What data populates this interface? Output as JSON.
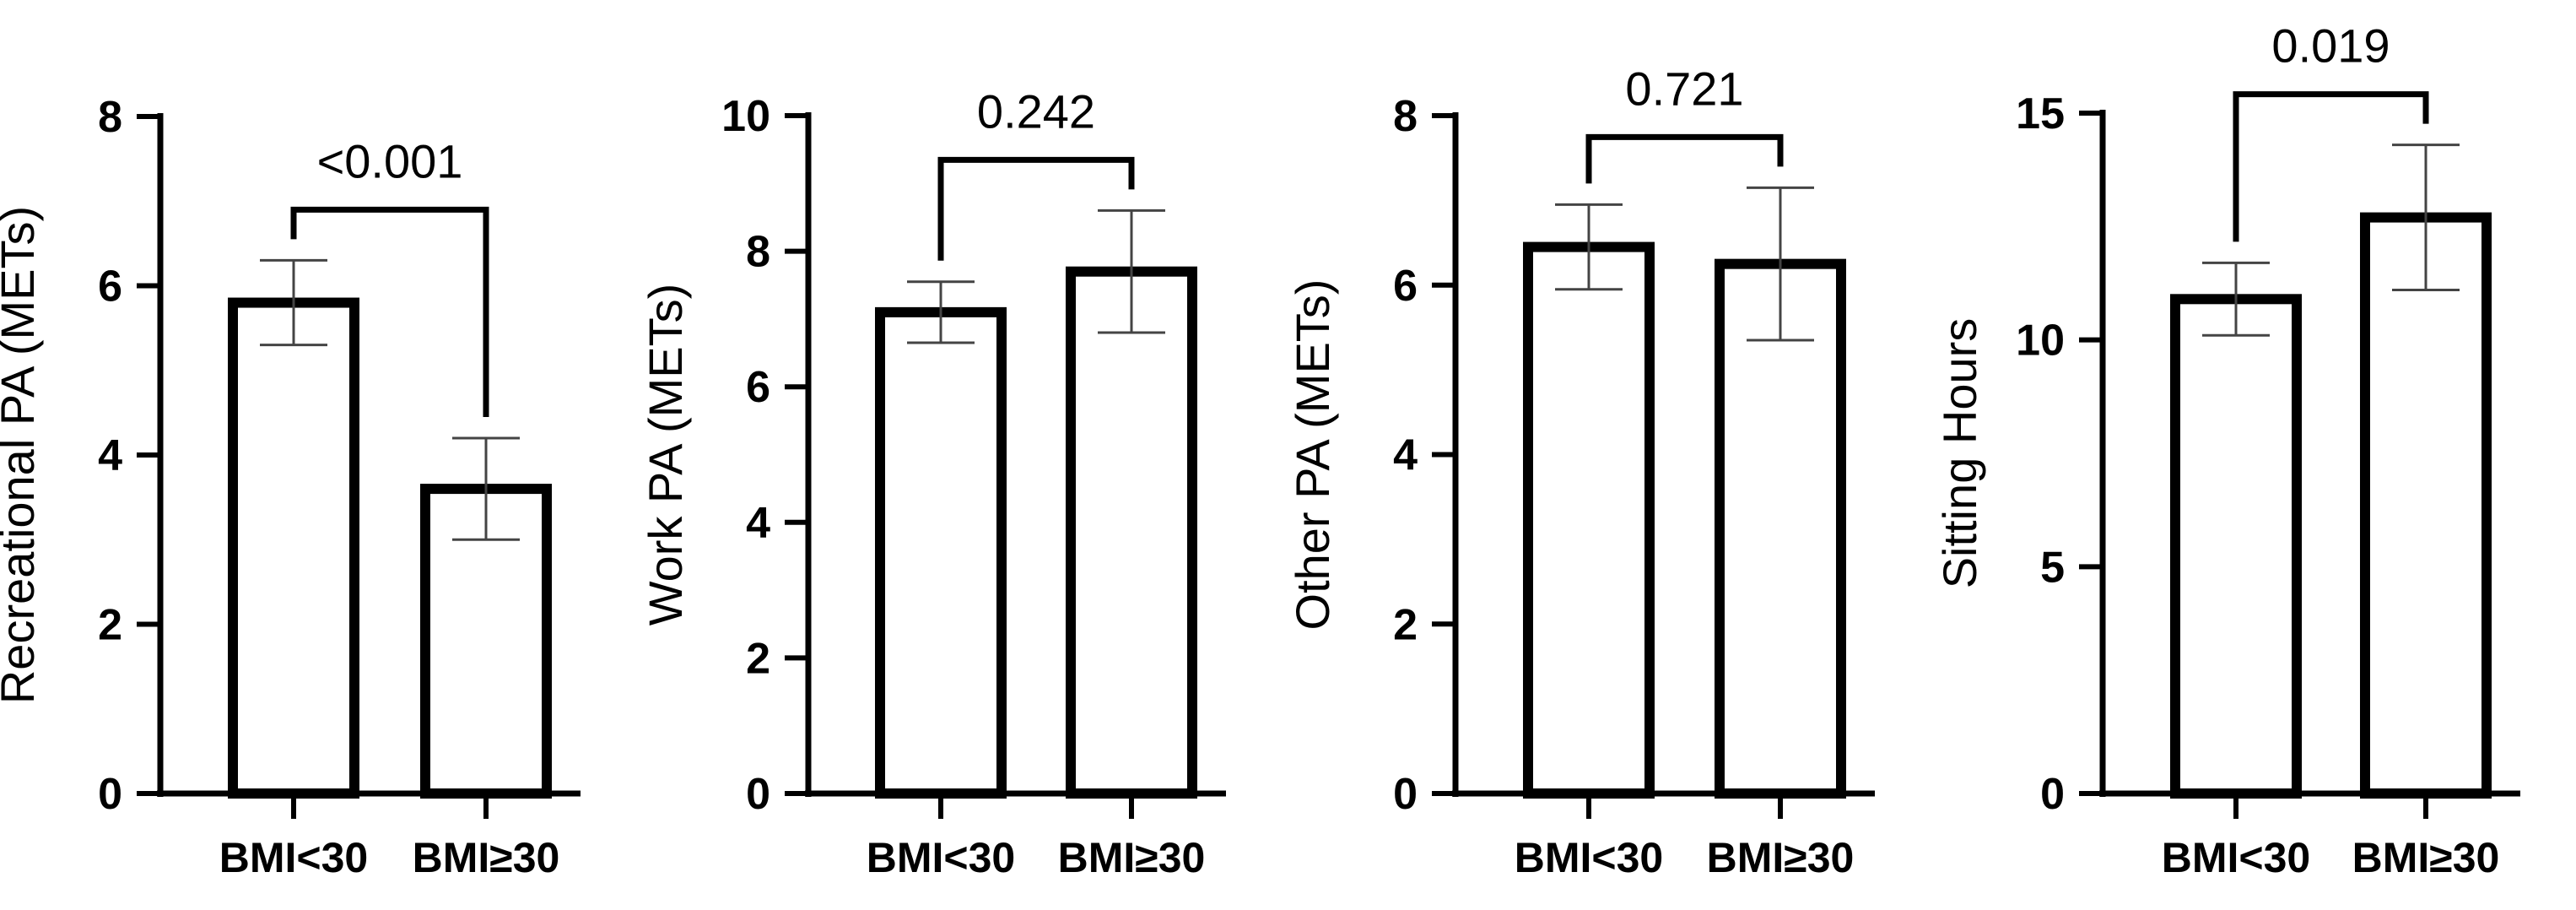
{
  "chart_data": [
    {
      "type": "bar",
      "categories": [
        "BMI<30",
        "BMI≥30"
      ],
      "values": [
        5.8,
        3.6
      ],
      "error": [
        0.5,
        0.6
      ],
      "ylabel": "Recreational PA  (METs)",
      "ylim": [
        0,
        8
      ],
      "yticks": [
        0,
        2,
        4,
        6,
        8
      ],
      "annotation": "<0.001"
    },
    {
      "type": "bar",
      "categories": [
        "BMI<30",
        "BMI≥30"
      ],
      "values": [
        7.1,
        7.7
      ],
      "error": [
        0.45,
        0.9
      ],
      "ylabel": "Work PA  (METs)",
      "ylim": [
        0,
        10
      ],
      "yticks": [
        0,
        2,
        4,
        6,
        8,
        10
      ],
      "annotation": "0.242"
    },
    {
      "type": "bar",
      "categories": [
        "BMI<30",
        "BMI≥30"
      ],
      "values": [
        6.45,
        6.25
      ],
      "error": [
        0.5,
        0.9
      ],
      "ylabel": "Other PA (METs)",
      "ylim": [
        0,
        8
      ],
      "yticks": [
        0,
        2,
        4,
        6,
        8
      ],
      "annotation": "0.721"
    },
    {
      "type": "bar",
      "categories": [
        "BMI<30",
        "BMI≥30"
      ],
      "values": [
        10.9,
        12.7
      ],
      "error": [
        0.8,
        1.6
      ],
      "ylabel": "Sitting Hours",
      "ylim": [
        0,
        15
      ],
      "yticks": [
        0,
        5,
        10,
        15
      ],
      "annotation": "0.019"
    }
  ]
}
